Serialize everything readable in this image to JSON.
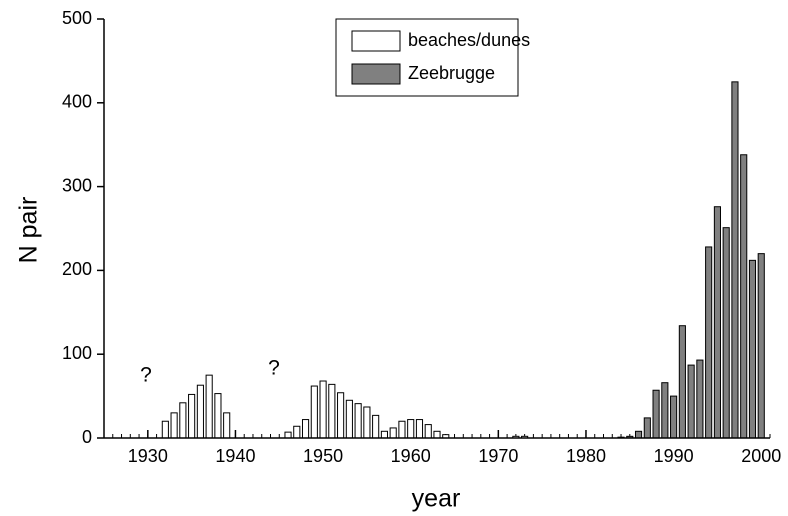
{
  "chart_data": {
    "type": "bar",
    "xlabel": "year",
    "ylabel": "N pair",
    "xlim": [
      1925,
      2001
    ],
    "ylim": [
      0,
      500
    ],
    "xticks": [
      1930,
      1940,
      1950,
      1960,
      1970,
      1980,
      1990,
      2000
    ],
    "yticks": [
      0,
      100,
      200,
      300,
      400,
      500
    ],
    "minor_ticks": true,
    "legend": "upper center",
    "annotations": [
      "?",
      "?"
    ],
    "series": [
      {
        "name": "beaches/dunes",
        "color": "#ffffff",
        "x": [
          1932,
          1933,
          1934,
          1935,
          1936,
          1937,
          1938,
          1939,
          1946,
          1947,
          1948,
          1949,
          1950,
          1951,
          1952,
          1953,
          1954,
          1955,
          1956,
          1957,
          1958,
          1959,
          1960,
          1961,
          1962,
          1963,
          1964,
          1972,
          1973
        ],
        "values": [
          20,
          30,
          42,
          52,
          63,
          75,
          53,
          30,
          7,
          14,
          22,
          62,
          68,
          64,
          54,
          45,
          41,
          37,
          27,
          8,
          12,
          20,
          22,
          22,
          16,
          8,
          4,
          2,
          2
        ]
      },
      {
        "name": "Zeebrugge",
        "color": "#808080",
        "x": [
          1984,
          1985,
          1986,
          1987,
          1988,
          1989,
          1990,
          1991,
          1992,
          1993,
          1994,
          1995,
          1996,
          1997,
          1998,
          1999,
          2000
        ],
        "values": [
          1,
          2,
          8,
          24,
          57,
          66,
          50,
          134,
          87,
          93,
          228,
          276,
          251,
          425,
          338,
          212,
          220
        ]
      }
    ]
  }
}
